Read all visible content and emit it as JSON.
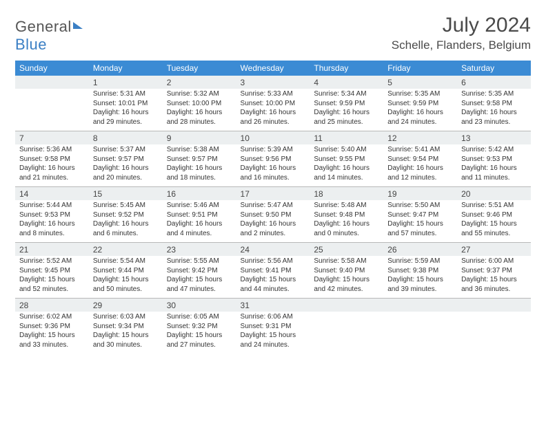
{
  "logo": {
    "text_gray": "General",
    "text_blue": "Blue"
  },
  "title": "July 2024",
  "subtitle": "Schelle, Flanders, Belgium",
  "colors": {
    "header_bg": "#3b8bd4",
    "header_text": "#ffffff",
    "daynum_bg": "#eceff0",
    "border": "#b8b8b8",
    "title_color": "#4a4a4a"
  },
  "day_headers": [
    "Sunday",
    "Monday",
    "Tuesday",
    "Wednesday",
    "Thursday",
    "Friday",
    "Saturday"
  ],
  "weeks": [
    [
      {
        "num": "",
        "lines": []
      },
      {
        "num": "1",
        "lines": [
          "Sunrise: 5:31 AM",
          "Sunset: 10:01 PM",
          "Daylight: 16 hours",
          "and 29 minutes."
        ]
      },
      {
        "num": "2",
        "lines": [
          "Sunrise: 5:32 AM",
          "Sunset: 10:00 PM",
          "Daylight: 16 hours",
          "and 28 minutes."
        ]
      },
      {
        "num": "3",
        "lines": [
          "Sunrise: 5:33 AM",
          "Sunset: 10:00 PM",
          "Daylight: 16 hours",
          "and 26 minutes."
        ]
      },
      {
        "num": "4",
        "lines": [
          "Sunrise: 5:34 AM",
          "Sunset: 9:59 PM",
          "Daylight: 16 hours",
          "and 25 minutes."
        ]
      },
      {
        "num": "5",
        "lines": [
          "Sunrise: 5:35 AM",
          "Sunset: 9:59 PM",
          "Daylight: 16 hours",
          "and 24 minutes."
        ]
      },
      {
        "num": "6",
        "lines": [
          "Sunrise: 5:35 AM",
          "Sunset: 9:58 PM",
          "Daylight: 16 hours",
          "and 23 minutes."
        ]
      }
    ],
    [
      {
        "num": "7",
        "lines": [
          "Sunrise: 5:36 AM",
          "Sunset: 9:58 PM",
          "Daylight: 16 hours",
          "and 21 minutes."
        ]
      },
      {
        "num": "8",
        "lines": [
          "Sunrise: 5:37 AM",
          "Sunset: 9:57 PM",
          "Daylight: 16 hours",
          "and 20 minutes."
        ]
      },
      {
        "num": "9",
        "lines": [
          "Sunrise: 5:38 AM",
          "Sunset: 9:57 PM",
          "Daylight: 16 hours",
          "and 18 minutes."
        ]
      },
      {
        "num": "10",
        "lines": [
          "Sunrise: 5:39 AM",
          "Sunset: 9:56 PM",
          "Daylight: 16 hours",
          "and 16 minutes."
        ]
      },
      {
        "num": "11",
        "lines": [
          "Sunrise: 5:40 AM",
          "Sunset: 9:55 PM",
          "Daylight: 16 hours",
          "and 14 minutes."
        ]
      },
      {
        "num": "12",
        "lines": [
          "Sunrise: 5:41 AM",
          "Sunset: 9:54 PM",
          "Daylight: 16 hours",
          "and 12 minutes."
        ]
      },
      {
        "num": "13",
        "lines": [
          "Sunrise: 5:42 AM",
          "Sunset: 9:53 PM",
          "Daylight: 16 hours",
          "and 11 minutes."
        ]
      }
    ],
    [
      {
        "num": "14",
        "lines": [
          "Sunrise: 5:44 AM",
          "Sunset: 9:53 PM",
          "Daylight: 16 hours",
          "and 8 minutes."
        ]
      },
      {
        "num": "15",
        "lines": [
          "Sunrise: 5:45 AM",
          "Sunset: 9:52 PM",
          "Daylight: 16 hours",
          "and 6 minutes."
        ]
      },
      {
        "num": "16",
        "lines": [
          "Sunrise: 5:46 AM",
          "Sunset: 9:51 PM",
          "Daylight: 16 hours",
          "and 4 minutes."
        ]
      },
      {
        "num": "17",
        "lines": [
          "Sunrise: 5:47 AM",
          "Sunset: 9:50 PM",
          "Daylight: 16 hours",
          "and 2 minutes."
        ]
      },
      {
        "num": "18",
        "lines": [
          "Sunrise: 5:48 AM",
          "Sunset: 9:48 PM",
          "Daylight: 16 hours",
          "and 0 minutes."
        ]
      },
      {
        "num": "19",
        "lines": [
          "Sunrise: 5:50 AM",
          "Sunset: 9:47 PM",
          "Daylight: 15 hours",
          "and 57 minutes."
        ]
      },
      {
        "num": "20",
        "lines": [
          "Sunrise: 5:51 AM",
          "Sunset: 9:46 PM",
          "Daylight: 15 hours",
          "and 55 minutes."
        ]
      }
    ],
    [
      {
        "num": "21",
        "lines": [
          "Sunrise: 5:52 AM",
          "Sunset: 9:45 PM",
          "Daylight: 15 hours",
          "and 52 minutes."
        ]
      },
      {
        "num": "22",
        "lines": [
          "Sunrise: 5:54 AM",
          "Sunset: 9:44 PM",
          "Daylight: 15 hours",
          "and 50 minutes."
        ]
      },
      {
        "num": "23",
        "lines": [
          "Sunrise: 5:55 AM",
          "Sunset: 9:42 PM",
          "Daylight: 15 hours",
          "and 47 minutes."
        ]
      },
      {
        "num": "24",
        "lines": [
          "Sunrise: 5:56 AM",
          "Sunset: 9:41 PM",
          "Daylight: 15 hours",
          "and 44 minutes."
        ]
      },
      {
        "num": "25",
        "lines": [
          "Sunrise: 5:58 AM",
          "Sunset: 9:40 PM",
          "Daylight: 15 hours",
          "and 42 minutes."
        ]
      },
      {
        "num": "26",
        "lines": [
          "Sunrise: 5:59 AM",
          "Sunset: 9:38 PM",
          "Daylight: 15 hours",
          "and 39 minutes."
        ]
      },
      {
        "num": "27",
        "lines": [
          "Sunrise: 6:00 AM",
          "Sunset: 9:37 PM",
          "Daylight: 15 hours",
          "and 36 minutes."
        ]
      }
    ],
    [
      {
        "num": "28",
        "lines": [
          "Sunrise: 6:02 AM",
          "Sunset: 9:36 PM",
          "Daylight: 15 hours",
          "and 33 minutes."
        ]
      },
      {
        "num": "29",
        "lines": [
          "Sunrise: 6:03 AM",
          "Sunset: 9:34 PM",
          "Daylight: 15 hours",
          "and 30 minutes."
        ]
      },
      {
        "num": "30",
        "lines": [
          "Sunrise: 6:05 AM",
          "Sunset: 9:32 PM",
          "Daylight: 15 hours",
          "and 27 minutes."
        ]
      },
      {
        "num": "31",
        "lines": [
          "Sunrise: 6:06 AM",
          "Sunset: 9:31 PM",
          "Daylight: 15 hours",
          "and 24 minutes."
        ]
      },
      {
        "num": "",
        "lines": []
      },
      {
        "num": "",
        "lines": []
      },
      {
        "num": "",
        "lines": []
      }
    ]
  ]
}
